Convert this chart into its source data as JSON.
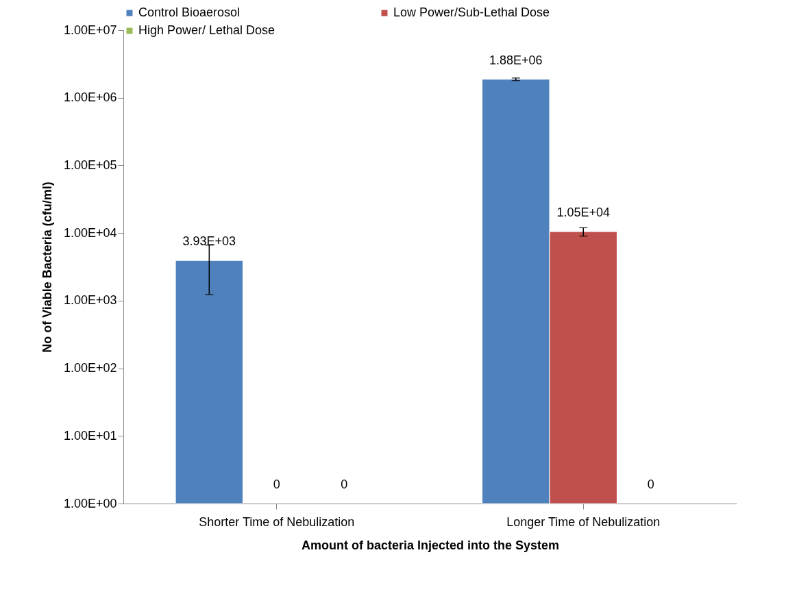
{
  "chart_data": {
    "type": "bar",
    "xlabel": "Amount of bacteria Injected into the System",
    "ylabel": "No of Viable Bacteria (cfu/ml)",
    "categories": [
      "Shorter Time of Nebulization",
      "Longer Time of Nebulization"
    ],
    "series": [
      {
        "name": "Control Bioaerosol",
        "color": "#4f81bd",
        "values": [
          3930,
          1880000
        ],
        "errors": [
          2700,
          80000
        ],
        "value_labels": [
          "3.93E+03",
          "1.88E+06"
        ]
      },
      {
        "name": "Low Power/Sub-Lethal Dose",
        "color": "#c0504d",
        "values": [
          null,
          10500
        ],
        "errors": [
          null,
          1500
        ],
        "value_labels": [
          "0",
          "1.05E+04"
        ]
      },
      {
        "name": "High Power/ Lethal Dose",
        "color": "#9bbb59",
        "values": [
          null,
          null
        ],
        "errors": [
          null,
          null
        ],
        "value_labels": [
          "0",
          "0"
        ]
      }
    ],
    "log": "y",
    "ylim": [
      1,
      10000000
    ],
    "yticks": [
      {
        "value": 1,
        "label": "1.00E+00"
      },
      {
        "value": 10,
        "label": "1.00E+01"
      },
      {
        "value": 100,
        "label": "1.00E+02"
      },
      {
        "value": 1000,
        "label": "1.00E+03"
      },
      {
        "value": 10000,
        "label": "1.00E+04"
      },
      {
        "value": 100000,
        "label": "1.00E+05"
      },
      {
        "value": 1000000,
        "label": "1.00E+06"
      },
      {
        "value": 10000000,
        "label": "1.00E+07"
      }
    ],
    "grid": false,
    "legend": "top"
  }
}
